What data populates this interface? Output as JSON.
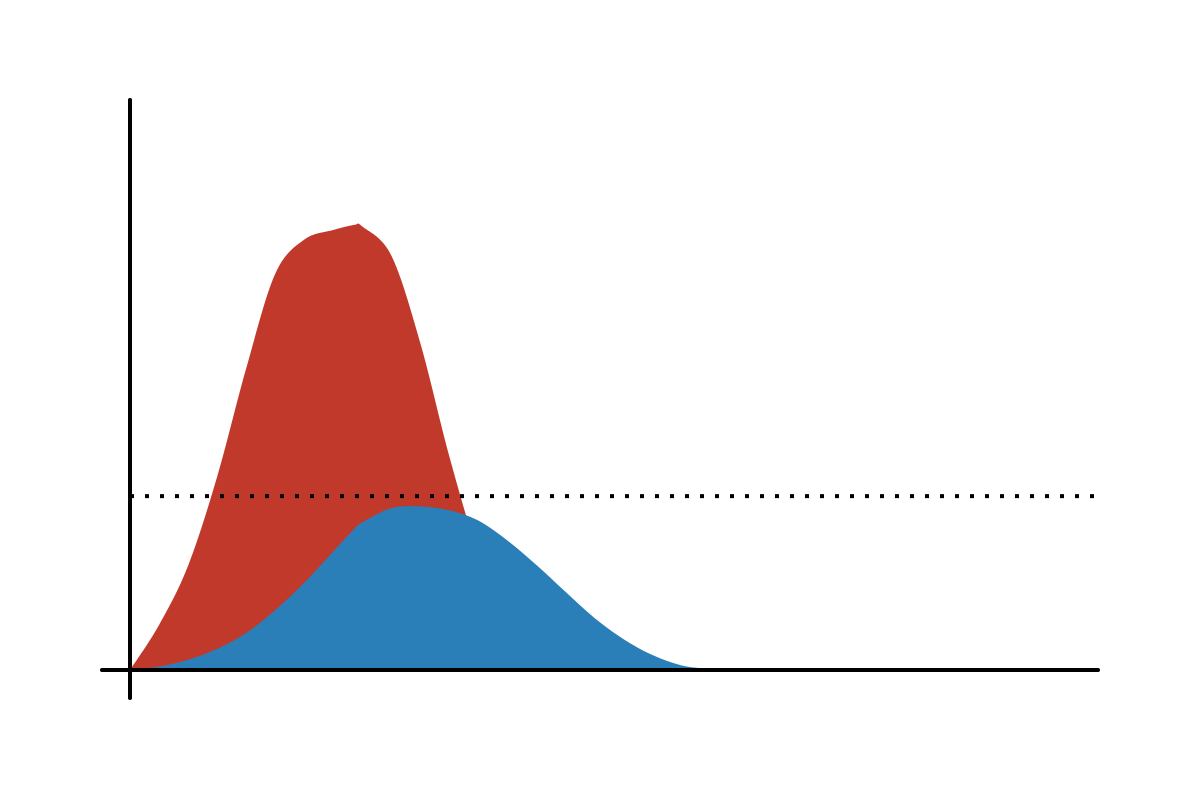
{
  "chart_data": {
    "type": "area",
    "title": "",
    "xlabel": "",
    "ylabel": "",
    "xlim": [
      0,
      100
    ],
    "ylim": [
      0,
      100
    ],
    "grid": false,
    "legend": "none",
    "ticks": "none",
    "x": [
      0,
      3,
      6,
      9,
      12,
      15,
      18,
      21,
      23.2,
      24,
      27,
      30,
      33,
      36,
      39,
      42,
      45,
      48,
      51,
      54,
      57,
      60,
      63,
      66,
      69,
      72,
      75,
      78,
      81,
      84,
      87,
      90,
      93,
      96,
      100
    ],
    "series": [
      {
        "color": "#c0392b",
        "values": [
          0,
          7.9,
          18.3,
          33.9,
          52.9,
          69.5,
          75.5,
          77.2,
          78.1,
          77.8,
          72.7,
          57.3,
          37.4,
          20.4,
          9.3,
          3.5,
          1.1,
          0.3,
          0.1,
          0,
          0,
          0,
          0,
          0,
          0,
          0,
          0,
          0,
          0,
          0,
          0,
          0,
          0,
          0,
          0
        ]
      },
      {
        "color": "#2a7fb8",
        "values": [
          0,
          0.6,
          1.8,
          3.7,
          6.5,
          10.5,
          15.3,
          20.8,
          24.8,
          25.9,
          28.4,
          28.7,
          28.0,
          26.2,
          22.7,
          18.4,
          13.7,
          9.1,
          5.4,
          2.6,
          0.8,
          0.2,
          0,
          0,
          0,
          0,
          0,
          0,
          0,
          0,
          0,
          0,
          0,
          0,
          0
        ]
      }
    ],
    "reference_line": {
      "y": 30.5,
      "style": "dotted",
      "color": "#000000"
    }
  }
}
